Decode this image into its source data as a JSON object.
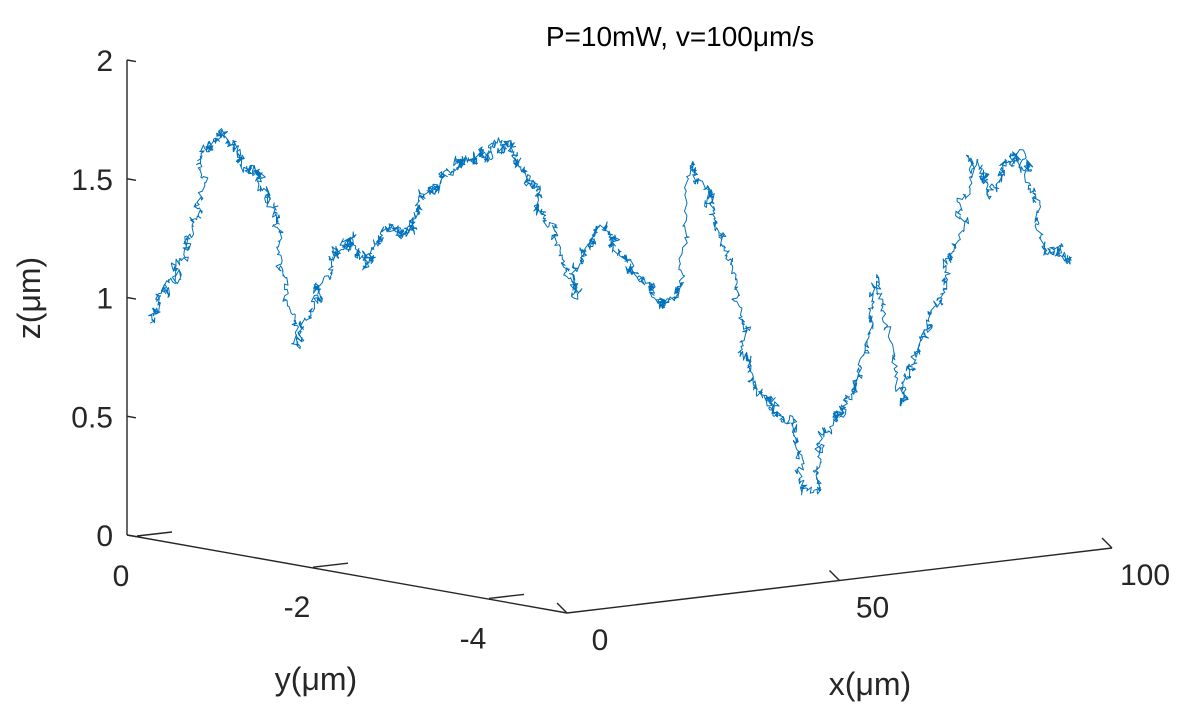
{
  "chart_data": {
    "type": "line",
    "title": "P=10mW, v=100μm/s",
    "xlabel": "x(μm)",
    "ylabel": "y(μm)",
    "zlabel": "z(μm)",
    "xlim": [
      0,
      100
    ],
    "ylim": [
      -5,
      0
    ],
    "zlim": [
      0,
      2
    ],
    "xticks": [
      0,
      50,
      100
    ],
    "yticks": [
      0,
      -2,
      -4
    ],
    "zticks": [
      0,
      0.5,
      1,
      1.5,
      2
    ],
    "xtick_labels": [
      "0",
      "50",
      "100"
    ],
    "ytick_labels": [
      "0",
      "-2",
      "-4"
    ],
    "ztick_labels": [
      "0",
      "0.5",
      "1",
      "1.5",
      "2"
    ],
    "grid": false,
    "series": [
      {
        "color": "#0072BD",
        "description": "3D random-walk trajectory; approximate z envelope versus screen position",
        "anchors": [
          {
            "u": 0.0,
            "z": 0.9
          },
          {
            "u": 0.02,
            "z": 1.05
          },
          {
            "u": 0.04,
            "z": 1.2
          },
          {
            "u": 0.06,
            "z": 1.6
          },
          {
            "u": 0.08,
            "z": 1.7
          },
          {
            "u": 0.1,
            "z": 1.55
          },
          {
            "u": 0.12,
            "z": 1.5
          },
          {
            "u": 0.14,
            "z": 1.3
          },
          {
            "u": 0.16,
            "z": 0.8
          },
          {
            "u": 0.18,
            "z": 1.0
          },
          {
            "u": 0.2,
            "z": 1.2
          },
          {
            "u": 0.22,
            "z": 1.25
          },
          {
            "u": 0.24,
            "z": 1.15
          },
          {
            "u": 0.26,
            "z": 1.3
          },
          {
            "u": 0.28,
            "z": 1.25
          },
          {
            "u": 0.3,
            "z": 1.4
          },
          {
            "u": 0.33,
            "z": 1.55
          },
          {
            "u": 0.36,
            "z": 1.6
          },
          {
            "u": 0.39,
            "z": 1.65
          },
          {
            "u": 0.42,
            "z": 1.45
          },
          {
            "u": 0.44,
            "z": 1.3
          },
          {
            "u": 0.46,
            "z": 1.0
          },
          {
            "u": 0.48,
            "z": 1.25
          },
          {
            "u": 0.5,
            "z": 1.3
          },
          {
            "u": 0.52,
            "z": 1.15
          },
          {
            "u": 0.54,
            "z": 1.05
          },
          {
            "u": 0.56,
            "z": 0.95
          },
          {
            "u": 0.58,
            "z": 1.05
          },
          {
            "u": 0.59,
            "z": 1.6
          },
          {
            "u": 0.61,
            "z": 1.4
          },
          {
            "u": 0.63,
            "z": 1.25
          },
          {
            "u": 0.65,
            "z": 0.8
          },
          {
            "u": 0.67,
            "z": 0.6
          },
          {
            "u": 0.7,
            "z": 0.45
          },
          {
            "u": 0.72,
            "z": 0.15
          },
          {
            "u": 0.74,
            "z": 0.45
          },
          {
            "u": 0.76,
            "z": 0.55
          },
          {
            "u": 0.78,
            "z": 0.7
          },
          {
            "u": 0.8,
            "z": 1.1
          },
          {
            "u": 0.82,
            "z": 0.55
          },
          {
            "u": 0.84,
            "z": 0.75
          },
          {
            "u": 0.86,
            "z": 0.95
          },
          {
            "u": 0.88,
            "z": 1.2
          },
          {
            "u": 0.9,
            "z": 1.6
          },
          {
            "u": 0.92,
            "z": 1.45
          },
          {
            "u": 0.94,
            "z": 1.6
          },
          {
            "u": 0.96,
            "z": 1.55
          },
          {
            "u": 0.98,
            "z": 1.2
          },
          {
            "u": 1.0,
            "z": 1.15
          }
        ],
        "u_range_px": [
          150,
          1065
        ]
      }
    ]
  }
}
